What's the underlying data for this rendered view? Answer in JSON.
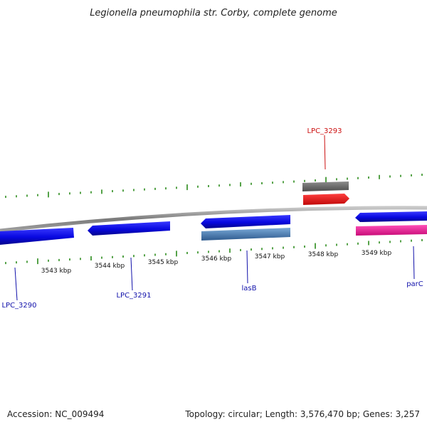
{
  "title": "Legionella pneumophila str. Corby, complete genome",
  "footer": {
    "accession": "Accession: NC_009494",
    "summary": "Topology: circular; Length: 3,576,470 bp; Genes: 3,257"
  },
  "colors": {
    "backbone": "#8a8a8a",
    "cds": "#0a0ae6",
    "gene_grey": "#6e6e6e",
    "gene_red": "#f01010",
    "gene_steel": "#4a82bc",
    "gene_pink": "#f0189a",
    "gc_ticks": "#2a8a1a",
    "label_blue": "#1010aa",
    "label_red": "#cc1010"
  },
  "axis": {
    "unit": "kbp",
    "ticks": [
      "3543 kbp",
      "3544 kbp",
      "3545 kbp",
      "3546 kbp",
      "3547 kbp",
      "3548 kbp",
      "3549 kbp"
    ]
  },
  "genes": [
    {
      "id": "LPC_3290",
      "label": "LPC_3290",
      "track": "lower",
      "color": "cds",
      "direction": "right"
    },
    {
      "id": "LPC_3291",
      "label": "LPC_3291",
      "track": "lower",
      "color": "cds",
      "direction": "left"
    },
    {
      "id": "lasB",
      "label": "lasB",
      "track": "lower",
      "color": "cds",
      "direction": "left"
    },
    {
      "id": "lasB_rna",
      "label": "",
      "track": "lower2",
      "color": "gene_steel",
      "direction": "none"
    },
    {
      "id": "LPC_3293",
      "label": "LPC_3293",
      "track": "upper",
      "color": "gene_red",
      "direction": "right"
    },
    {
      "id": "LPC_3293_grey",
      "label": "",
      "track": "upper2",
      "color": "gene_grey",
      "direction": "none"
    },
    {
      "id": "parC",
      "label": "parC",
      "track": "lower",
      "color": "cds",
      "direction": "left"
    },
    {
      "id": "parC_pink",
      "label": "",
      "track": "lower2",
      "color": "gene_pink",
      "direction": "none"
    }
  ]
}
